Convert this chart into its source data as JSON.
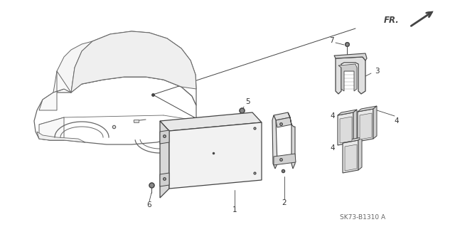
{
  "bg_color": "#ffffff",
  "line_color": "#666666",
  "dark_color": "#444444",
  "label_color": "#333333",
  "fig_width": 6.4,
  "fig_height": 3.19,
  "dpi": 100,
  "diagram_code": "SK73-B1310 A",
  "fr_label": "FR."
}
